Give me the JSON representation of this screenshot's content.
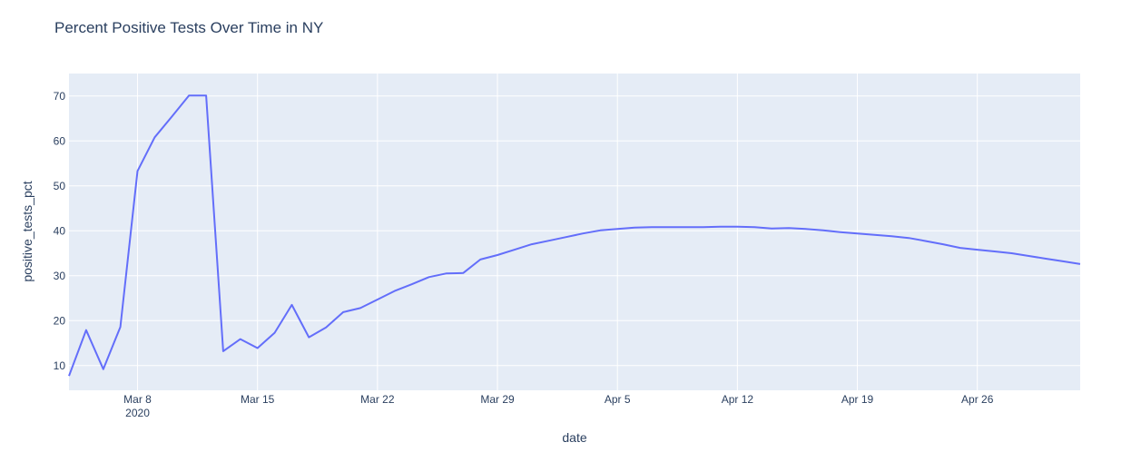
{
  "chart_data": {
    "type": "line",
    "title": "Percent Positive Tests Over Time in NY",
    "xlabel": "date",
    "ylabel": "positive_tests_pct",
    "x_range": [
      "2020-03-04",
      "2020-05-02"
    ],
    "xticks": [
      {
        "date": "2020-03-08",
        "label": "Mar 8",
        "sublabel": "2020"
      },
      {
        "date": "2020-03-15",
        "label": "Mar 15",
        "sublabel": ""
      },
      {
        "date": "2020-03-22",
        "label": "Mar 22",
        "sublabel": ""
      },
      {
        "date": "2020-03-29",
        "label": "Mar 29",
        "sublabel": ""
      },
      {
        "date": "2020-04-05",
        "label": "Apr 5",
        "sublabel": ""
      },
      {
        "date": "2020-04-12",
        "label": "Apr 12",
        "sublabel": ""
      },
      {
        "date": "2020-04-19",
        "label": "Apr 19",
        "sublabel": ""
      },
      {
        "date": "2020-04-26",
        "label": "Apr 26",
        "sublabel": ""
      }
    ],
    "ylim": [
      4.5,
      75
    ],
    "yticks": [
      10,
      20,
      30,
      40,
      50,
      60,
      70
    ],
    "grid": true,
    "legend": "none",
    "colors": {
      "line": "#636efa",
      "plot_bg": "#e5ecf6",
      "grid": "#ffffff",
      "text": "#2a3f5f"
    },
    "series": [
      {
        "x": [
          "2020-03-04",
          "2020-03-05",
          "2020-03-06",
          "2020-03-07",
          "2020-03-08",
          "2020-03-09",
          "2020-03-10",
          "2020-03-11",
          "2020-03-12",
          "2020-03-13",
          "2020-03-14",
          "2020-03-15",
          "2020-03-16",
          "2020-03-17",
          "2020-03-18",
          "2020-03-19",
          "2020-03-20",
          "2020-03-21",
          "2020-03-22",
          "2020-03-23",
          "2020-03-24",
          "2020-03-25",
          "2020-03-26",
          "2020-03-27",
          "2020-03-28",
          "2020-03-29",
          "2020-03-30",
          "2020-03-31",
          "2020-04-01",
          "2020-04-02",
          "2020-04-03",
          "2020-04-04",
          "2020-04-05",
          "2020-04-06",
          "2020-04-07",
          "2020-04-08",
          "2020-04-09",
          "2020-04-10",
          "2020-04-11",
          "2020-04-12",
          "2020-04-13",
          "2020-04-14",
          "2020-04-15",
          "2020-04-16",
          "2020-04-17",
          "2020-04-18",
          "2020-04-19",
          "2020-04-20",
          "2020-04-21",
          "2020-04-22",
          "2020-04-23",
          "2020-04-24",
          "2020-04-25",
          "2020-04-26",
          "2020-04-27",
          "2020-04-28",
          "2020-04-29",
          "2020-04-30",
          "2020-05-01",
          "2020-05-02"
        ],
        "y": [
          7.7,
          17.9,
          9.2,
          18.6,
          53.3,
          60.8,
          65.4,
          70.1,
          70.1,
          13.2,
          15.9,
          13.9,
          17.3,
          23.5,
          16.3,
          18.5,
          21.9,
          22.8,
          24.7,
          26.6,
          28.1,
          29.7,
          30.5,
          30.6,
          33.6,
          34.6,
          35.8,
          37.0,
          37.8,
          38.6,
          39.4,
          40.1,
          40.4,
          40.7,
          40.8,
          40.8,
          40.8,
          40.8,
          40.9,
          40.9,
          40.8,
          40.5,
          40.6,
          40.4,
          40.1,
          39.7,
          39.4,
          39.1,
          38.8,
          38.4,
          37.7,
          37.0,
          36.2,
          35.8,
          35.4,
          35.0,
          34.4,
          33.8,
          33.2,
          32.6
        ]
      }
    ]
  }
}
